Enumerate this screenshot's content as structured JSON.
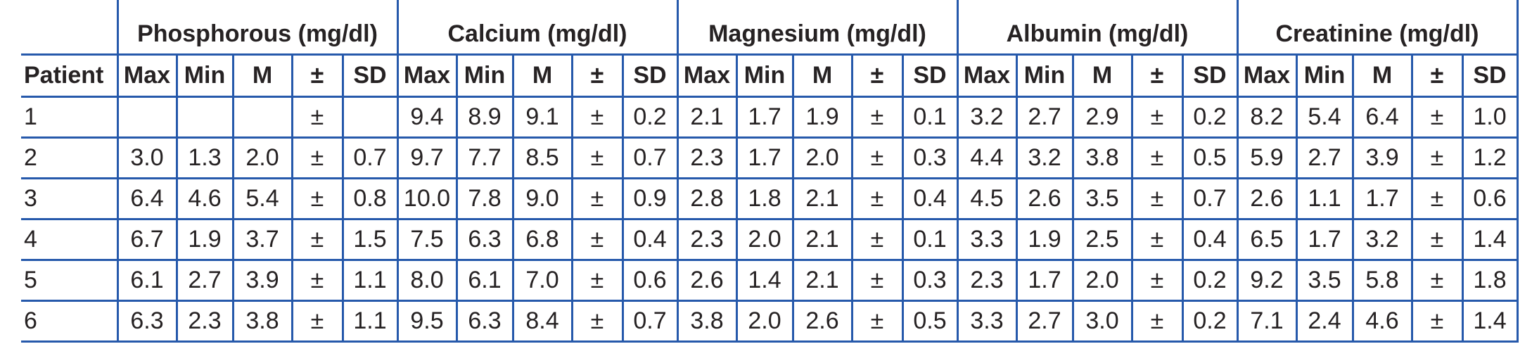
{
  "colors": {
    "border_blue": "#2659ab",
    "text": "#262223",
    "background": "#ffffff"
  },
  "table": {
    "patient_header": "Patient",
    "groups": [
      {
        "label": "Phosphorous (mg/dl)"
      },
      {
        "label": "Calcium (mg/dl)"
      },
      {
        "label": "Magnesium (mg/dl)"
      },
      {
        "label": "Albumin (mg/dl)"
      },
      {
        "label": "Creatinine (mg/dl)"
      }
    ],
    "sub_headers": [
      "Max",
      "Min",
      "M",
      "±",
      "SD"
    ],
    "rows": [
      {
        "patient": "1",
        "values": [
          [
            "",
            "",
            "",
            "±",
            ""
          ],
          [
            "9.4",
            "8.9",
            "9.1",
            "±",
            "0.2"
          ],
          [
            "2.1",
            "1.7",
            "1.9",
            "±",
            "0.1"
          ],
          [
            "3.2",
            "2.7",
            "2.9",
            "±",
            "0.2"
          ],
          [
            "8.2",
            "5.4",
            "6.4",
            "±",
            "1.0"
          ]
        ]
      },
      {
        "patient": "2",
        "values": [
          [
            "3.0",
            "1.3",
            "2.0",
            "±",
            "0.7"
          ],
          [
            "9.7",
            "7.7",
            "8.5",
            "±",
            "0.7"
          ],
          [
            "2.3",
            "1.7",
            "2.0",
            "±",
            "0.3"
          ],
          [
            "4.4",
            "3.2",
            "3.8",
            "±",
            "0.5"
          ],
          [
            "5.9",
            "2.7",
            "3.9",
            "±",
            "1.2"
          ]
        ]
      },
      {
        "patient": "3",
        "values": [
          [
            "6.4",
            "4.6",
            "5.4",
            "±",
            "0.8"
          ],
          [
            "10.0",
            "7.8",
            "9.0",
            "±",
            "0.9"
          ],
          [
            "2.8",
            "1.8",
            "2.1",
            "±",
            "0.4"
          ],
          [
            "4.5",
            "2.6",
            "3.5",
            "±",
            "0.7"
          ],
          [
            "2.6",
            "1.1",
            "1.7",
            "±",
            "0.6"
          ]
        ]
      },
      {
        "patient": "4",
        "values": [
          [
            "6.7",
            "1.9",
            "3.7",
            "±",
            "1.5"
          ],
          [
            "7.5",
            "6.3",
            "6.8",
            "±",
            "0.4"
          ],
          [
            "2.3",
            "2.0",
            "2.1",
            "±",
            "0.1"
          ],
          [
            "3.3",
            "1.9",
            "2.5",
            "±",
            "0.4"
          ],
          [
            "6.5",
            "1.7",
            "3.2",
            "±",
            "1.4"
          ]
        ]
      },
      {
        "patient": "5",
        "values": [
          [
            "6.1",
            "2.7",
            "3.9",
            "±",
            "1.1"
          ],
          [
            "8.0",
            "6.1",
            "7.0",
            "±",
            "0.6"
          ],
          [
            "2.6",
            "1.4",
            "2.1",
            "±",
            "0.3"
          ],
          [
            "2.3",
            "1.7",
            "2.0",
            "±",
            "0.2"
          ],
          [
            "9.2",
            "3.5",
            "5.8",
            "±",
            "1.8"
          ]
        ]
      },
      {
        "patient": "6",
        "values": [
          [
            "6.3",
            "2.3",
            "3.8",
            "±",
            "1.1"
          ],
          [
            "9.5",
            "6.3",
            "8.4",
            "±",
            "0.7"
          ],
          [
            "3.8",
            "2.0",
            "2.6",
            "±",
            "0.5"
          ],
          [
            "3.3",
            "2.7",
            "3.0",
            "±",
            "0.2"
          ],
          [
            "7.1",
            "2.4",
            "4.6",
            "±",
            "1.4"
          ]
        ]
      }
    ]
  }
}
